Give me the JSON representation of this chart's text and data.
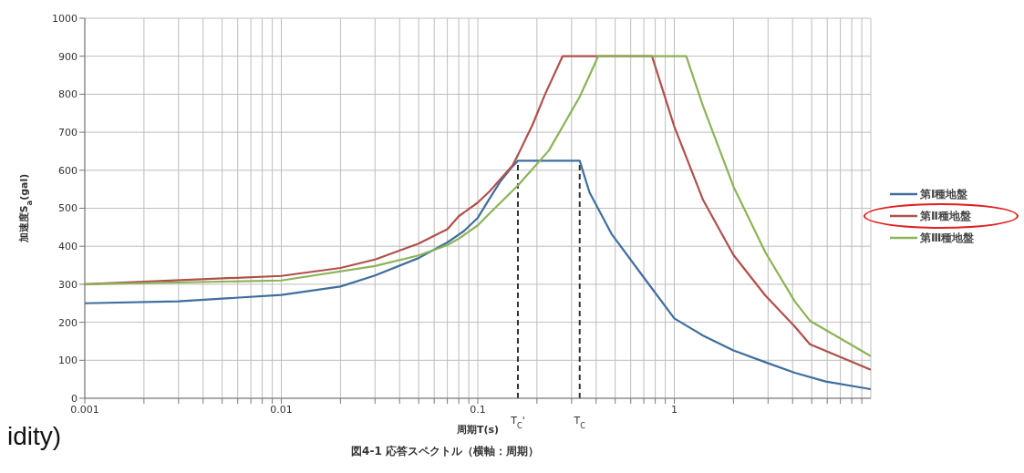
{
  "chart_data": {
    "type": "line",
    "title": "図4-1 応答スペクトル（横軸：周期）",
    "xlabel": "周期T(s)",
    "ylabel": "加速度S$_{a}$(gal)",
    "annotations": [
      "idity)"
    ],
    "log": "x",
    "xlim": [
      0.001,
      10
    ],
    "ylim": [
      0,
      1000
    ],
    "xticks": [
      0.001,
      {
        "value": 0.002,
        "label": null
      },
      {
        "value": 0.003,
        "label": null
      },
      {
        "value": 0.004,
        "label": null
      },
      {
        "value": 0.005,
        "label": null
      },
      {
        "value": 0.006,
        "label": null
      },
      {
        "value": 0.007,
        "label": null
      },
      {
        "value": 0.008,
        "label": null
      },
      {
        "value": 0.009,
        "label": null
      },
      0.01,
      {
        "value": 0.02,
        "label": null
      },
      {
        "value": 0.03,
        "label": null
      },
      {
        "value": 0.04,
        "label": null
      },
      {
        "value": 0.05,
        "label": null
      },
      {
        "value": 0.06,
        "label": null
      },
      {
        "value": 0.07,
        "label": null
      },
      {
        "value": 0.08,
        "label": null
      },
      {
        "value": 0.09,
        "label": null
      },
      0.1,
      {
        "value": 0.2,
        "label": null
      },
      {
        "value": 0.3,
        "label": null
      },
      {
        "value": 0.4,
        "label": null
      },
      {
        "value": 0.5,
        "label": null
      },
      {
        "value": 0.6,
        "label": null
      },
      {
        "value": 0.7,
        "label": null
      },
      {
        "value": 0.8,
        "label": null
      },
      {
        "value": 0.9,
        "label": null
      },
      1,
      {
        "value": 2,
        "label": null
      },
      {
        "value": 3,
        "label": null
      },
      {
        "value": 4,
        "label": null
      },
      {
        "value": 5,
        "label": null
      },
      {
        "value": 6,
        "label": null
      },
      {
        "value": 7,
        "label": null
      },
      {
        "value": 8,
        "label": null
      },
      {
        "value": 9,
        "label": null
      }
    ],
    "yticks": [
      0,
      100,
      200,
      300,
      400,
      500,
      600,
      700,
      800,
      900,
      1000
    ],
    "grid": true,
    "legend": "right",
    "marker": "none",
    "line_style": "solid",
    "ref_lines": [
      {
        "axis": "x",
        "value": 0.16,
        "label": "T$_{C}$'",
        "color": "#333333",
        "line_style": "dashed"
      },
      {
        "axis": "x",
        "value": 0.33,
        "label": "T$_{C}$",
        "color": "#333333",
        "line_style": "dashed"
      }
    ],
    "series": [
      {
        "name": "第Ⅰ種地盤",
        "color": "#3f6e9e",
        "x": [
          0.001,
          0.003,
          0.01,
          0.02,
          0.03,
          0.05,
          0.07,
          0.085,
          0.1,
          0.115,
          0.13,
          0.15,
          0.16,
          0.33,
          0.37,
          0.48,
          0.69,
          1,
          1.4,
          2,
          2.9,
          4.1,
          5.9,
          10
        ],
        "values": [
          250,
          255,
          272,
          294,
          323,
          369,
          410,
          440,
          475,
          526,
          570,
          610,
          625,
          625,
          542,
          432,
          322,
          210,
          165,
          126,
          95,
          67,
          44,
          24
        ]
      },
      {
        "name": "第Ⅱ種地盤",
        "color": "#b0504c",
        "x": [
          0.001,
          0.01,
          0.02,
          0.03,
          0.05,
          0.07,
          0.08,
          0.1,
          0.115,
          0.15,
          0.16,
          0.19,
          0.22,
          0.27,
          0.77,
          1,
          1.4,
          2,
          2.9,
          4.1,
          4.9,
          10
        ],
        "values": [
          300,
          322,
          343,
          365,
          407,
          445,
          479,
          515,
          545,
          612,
          640,
          720,
          800,
          900,
          900,
          715,
          522,
          377,
          271,
          189,
          142,
          75
        ]
      },
      {
        "name": "第Ⅲ種地盤",
        "color": "#8cb356",
        "x": [
          0.001,
          0.01,
          0.03,
          0.05,
          0.07,
          0.08,
          0.1,
          0.115,
          0.16,
          0.23,
          0.33,
          0.41,
          1.15,
          1.4,
          2,
          2.9,
          4.1,
          4.9,
          10
        ],
        "values": [
          300,
          310,
          348,
          376,
          403,
          420,
          455,
          487,
          560,
          652,
          793,
          900,
          900,
          769,
          557,
          385,
          255,
          204,
          111
        ]
      }
    ]
  }
}
